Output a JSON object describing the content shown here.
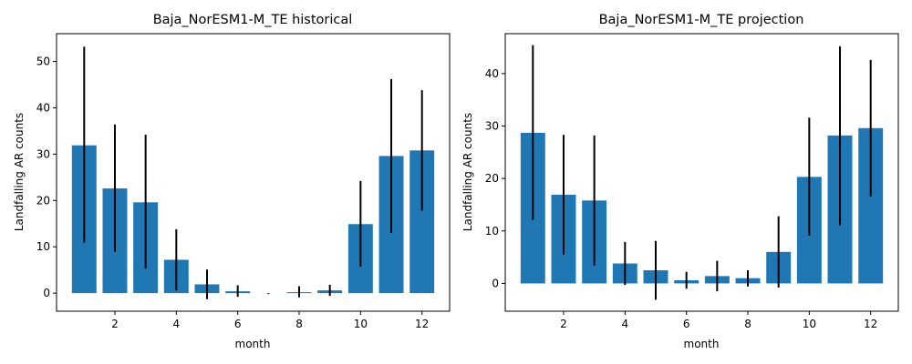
{
  "chart_data": [
    {
      "type": "bar",
      "title": "Baja_NorESM1-M_TE historical",
      "xlabel": "month",
      "ylabel": "Landfalling AR counts",
      "x": [
        1,
        2,
        3,
        4,
        5,
        6,
        7,
        8,
        9,
        10,
        11,
        12
      ],
      "values": [
        31.9,
        22.6,
        19.6,
        7.2,
        1.9,
        0.4,
        0.0,
        0.2,
        0.6,
        14.9,
        29.6,
        30.8
      ],
      "err_low": [
        10.9,
        8.9,
        5.3,
        0.6,
        -1.3,
        -0.8,
        0.0,
        -0.9,
        -0.6,
        5.7,
        13.0,
        17.8
      ],
      "err_high": [
        53.2,
        36.4,
        34.2,
        13.8,
        5.1,
        1.7,
        0.0,
        1.5,
        1.8,
        24.2,
        46.2,
        43.8
      ],
      "xlim": [
        0.1,
        12.9
      ],
      "ylim": [
        -3.9,
        56.0
      ],
      "xticks": [
        2,
        4,
        6,
        8,
        10,
        12
      ],
      "yticks": [
        0,
        10,
        20,
        30,
        40,
        50
      ],
      "color": "#1f77b4"
    },
    {
      "type": "bar",
      "title": "Baja_NorESM1-M_TE projection",
      "xlabel": "month",
      "ylabel": "Landfalling AR counts",
      "x": [
        1,
        2,
        3,
        4,
        5,
        6,
        7,
        8,
        9,
        10,
        11,
        12
      ],
      "values": [
        28.7,
        16.9,
        15.8,
        3.8,
        2.5,
        0.6,
        1.4,
        1.0,
        6.0,
        20.3,
        28.2,
        29.6
      ],
      "err_low": [
        12.1,
        5.5,
        3.4,
        -0.3,
        -3.1,
        -1.0,
        -1.5,
        -0.6,
        -0.8,
        9.1,
        11.1,
        16.6
      ],
      "err_high": [
        45.4,
        28.3,
        28.2,
        7.9,
        8.1,
        2.2,
        4.3,
        2.5,
        12.8,
        31.6,
        45.2,
        42.6
      ],
      "xlim": [
        0.1,
        12.9
      ],
      "ylim": [
        -5.3,
        47.6
      ],
      "xticks": [
        2,
        4,
        6,
        8,
        10,
        12
      ],
      "yticks": [
        0,
        10,
        20,
        30,
        40
      ],
      "color": "#1f77b4"
    }
  ]
}
